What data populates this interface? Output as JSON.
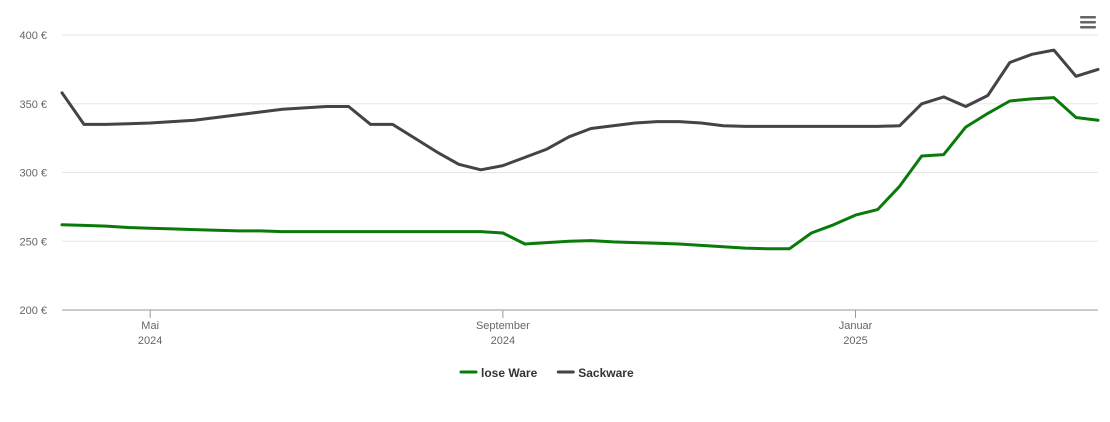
{
  "chart_data": {
    "type": "line",
    "categories": [
      null,
      null,
      null,
      null,
      "Mai\n2024",
      null,
      null,
      null,
      null,
      null,
      null,
      null,
      null,
      null,
      null,
      null,
      null,
      null,
      null,
      null,
      "September\n2024",
      null,
      null,
      null,
      null,
      null,
      null,
      null,
      null,
      null,
      null,
      null,
      null,
      null,
      null,
      null,
      "Januar\n2025",
      null,
      null,
      null,
      null,
      null,
      null,
      null,
      null,
      null,
      null,
      null
    ],
    "series": [
      {
        "name": "lose Ware",
        "color": "#0a7a0a",
        "values": [
          262,
          261.5,
          261,
          260,
          259.5,
          259,
          258.5,
          258,
          257.5,
          257.5,
          257,
          257,
          257,
          257,
          257,
          257,
          257,
          257,
          257,
          257,
          256,
          248,
          249,
          250,
          250.5,
          249.5,
          249,
          248.5,
          248,
          247,
          246,
          245,
          244.5,
          244.5,
          256,
          262,
          269,
          273,
          290,
          312,
          313,
          333,
          343,
          352,
          353.5,
          354.5,
          340,
          338
        ]
      },
      {
        "name": "Sackware",
        "color": "#434348",
        "values": [
          358,
          335,
          335,
          335.5,
          336,
          337,
          338,
          340,
          342,
          344,
          346,
          347,
          348,
          348,
          335,
          335,
          325,
          315,
          306,
          302,
          305,
          311,
          317,
          326,
          332,
          334,
          336,
          337,
          337,
          336,
          334,
          333.5,
          333.5,
          333.5,
          333.5,
          333.5,
          333.5,
          333.5,
          334,
          350,
          355,
          348,
          356,
          380,
          386,
          389,
          370,
          375
        ]
      }
    ],
    "ylim": [
      200,
      400
    ],
    "yticks": [
      {
        "value": 200,
        "label": "200 €"
      },
      {
        "value": 250,
        "label": "250 €"
      },
      {
        "value": 300,
        "label": "300 €"
      },
      {
        "value": 350,
        "label": "350 €"
      },
      {
        "value": 400,
        "label": "400 €"
      }
    ],
    "grid": true
  }
}
